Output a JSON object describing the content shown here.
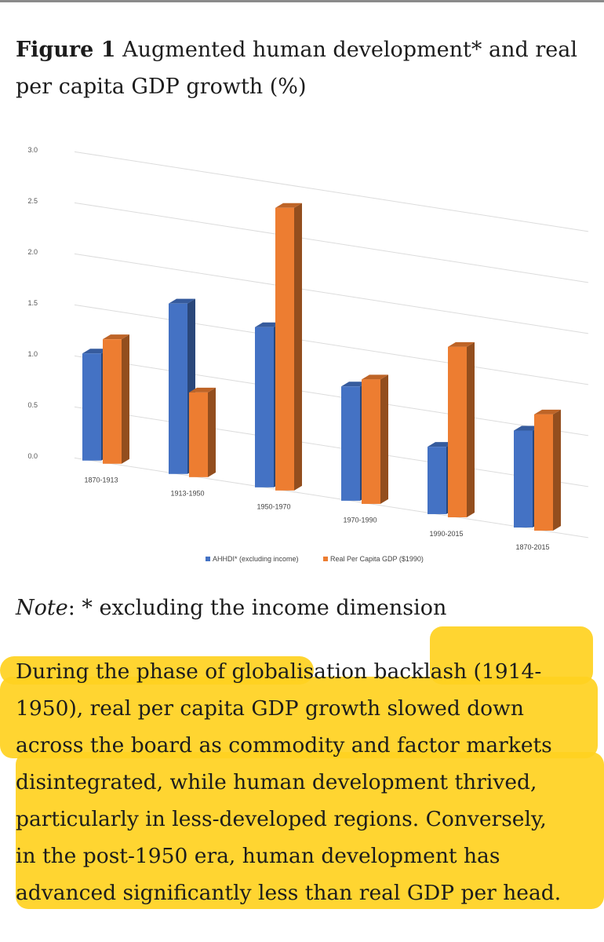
{
  "figure": {
    "label": "Figure 1",
    "title": "Augmented human development* and real per capita GDP growth (%)"
  },
  "chart_data": {
    "type": "bar",
    "categories": [
      "1870-1913",
      "1913-1950",
      "1950-1970",
      "1970-1990",
      "1990-2015",
      "1870-2015"
    ],
    "series": [
      {
        "name": "AHHDI* (excluding income)",
        "values": [
          1.05,
          1.67,
          1.57,
          1.12,
          0.66,
          0.95
        ],
        "color": "#4472c4"
      },
      {
        "name": "Real Per Capita GDP ($1990)",
        "values": [
          1.22,
          0.83,
          2.77,
          1.22,
          1.67,
          1.14
        ],
        "color": "#ed7d31"
      }
    ],
    "yticks": [
      "0.0",
      "0.5",
      "1.0",
      "1.5",
      "2.0",
      "2.5",
      "3.0"
    ],
    "ylim": [
      0,
      3.0
    ],
    "grid": true,
    "legend": "bottom",
    "style": "3d"
  },
  "note": {
    "label": "Note",
    "text": ": * excluding the income dimension"
  },
  "paragraph": {
    "lines": [
      "During the phase of globalisation backlash (1914-",
      "1950), real per capita GDP growth slowed down",
      "across the board as commodity and factor markets",
      "disintegrated, while human development thrived,",
      "particularly in less-developed regions. Conversely,",
      "in the post-1950 era, human development has",
      "advanced significantly less than real GDP per head."
    ]
  }
}
